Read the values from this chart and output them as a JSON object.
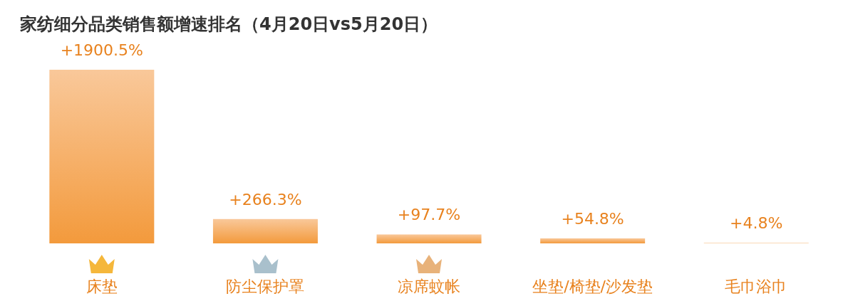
{
  "chart_data": {
    "type": "bar",
    "title": "家纺细分品类销售额增速排名（4月20日vs5月20日）",
    "categories": [
      "床垫",
      "防尘保护罩",
      "凉席蚊帐",
      "坐垫/椅垫/沙发垫",
      "毛巾浴巾"
    ],
    "values": [
      1900.5,
      266.3,
      97.7,
      54.8,
      4.8
    ],
    "value_labels": [
      "+1900.5%",
      "+266.3%",
      "+97.7%",
      "+54.8%",
      "+4.8%"
    ],
    "color": "#f39a3c"
  }
}
